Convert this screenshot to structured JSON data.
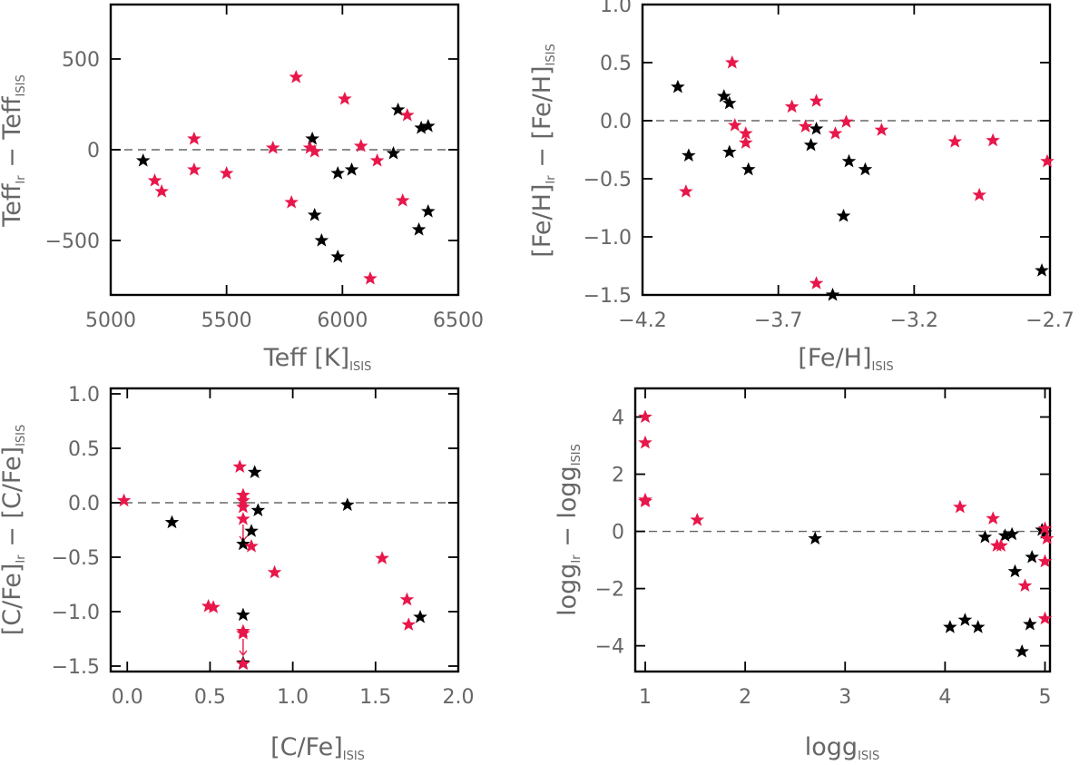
{
  "colors": {
    "set_a": "#000000",
    "set_b": "#e8174a",
    "axis_text": "#666666"
  },
  "chart_data": [
    {
      "type": "scatter",
      "id": "teff",
      "xlabel": "Teff [K]",
      "xlabel_sub": "ISIS",
      "ylabel_main": "Teff",
      "ylabel_sub1": "Ir",
      "ylabel_minus": " − ",
      "ylabel_main2": "Teff",
      "ylabel_sub2": "ISIS",
      "xlim": [
        5000,
        6500
      ],
      "ylim": [
        -800,
        800
      ],
      "xticks": [
        5000,
        5500,
        6000,
        6500
      ],
      "xtick_labels": [
        "5000",
        "5500",
        "6000",
        "6500"
      ],
      "yticks": [
        -500,
        0,
        500
      ],
      "ytick_labels": [
        "−500",
        "0",
        "500"
      ],
      "zero_line": true,
      "series": [
        {
          "name": "set_a",
          "color": "#000000",
          "points": [
            [
              5140,
              -60
            ],
            [
              5870,
              60
            ],
            [
              5880,
              -360
            ],
            [
              5910,
              -500
            ],
            [
              5980,
              -590
            ],
            [
              5980,
              -130
            ],
            [
              6040,
              -110
            ],
            [
              6220,
              -20
            ],
            [
              6240,
              220
            ],
            [
              6330,
              -440
            ],
            [
              6340,
              120
            ],
            [
              6370,
              130
            ],
            [
              6370,
              -340
            ]
          ]
        },
        {
          "name": "set_b",
          "color": "#e8174a",
          "points": [
            [
              5190,
              -170
            ],
            [
              5220,
              -230
            ],
            [
              5360,
              60
            ],
            [
              5360,
              -110
            ],
            [
              5500,
              -130
            ],
            [
              5700,
              10
            ],
            [
              5780,
              -290
            ],
            [
              5800,
              400
            ],
            [
              5860,
              10
            ],
            [
              5880,
              -10
            ],
            [
              6010,
              280
            ],
            [
              6080,
              20
            ],
            [
              6120,
              -710
            ],
            [
              6150,
              -60
            ],
            [
              6260,
              -280
            ],
            [
              6280,
              190
            ]
          ]
        }
      ]
    },
    {
      "type": "scatter",
      "id": "feh",
      "xlabel": "[Fe/H]",
      "xlabel_sub": "ISIS",
      "ylabel_main": "[Fe/H]",
      "ylabel_sub1": "Ir",
      "ylabel_minus": " − ",
      "ylabel_main2": "[Fe/H]",
      "ylabel_sub2": "ISIS",
      "xlim": [
        -4.2,
        -2.7
      ],
      "ylim": [
        -1.5,
        1.0
      ],
      "xticks": [
        -4.2,
        -3.7,
        -3.2,
        -2.7
      ],
      "xtick_labels": [
        "−4.2",
        "−3.7",
        "−3.2",
        "−2.7"
      ],
      "yticks": [
        -1.5,
        -1.0,
        -0.5,
        0.0,
        0.5,
        1.0
      ],
      "ytick_labels": [
        "−1.5",
        "−1.0",
        "−0.5",
        "0.0",
        "0.5",
        "1.0"
      ],
      "zero_line": true,
      "series": [
        {
          "name": "set_a",
          "color": "#000000",
          "points": [
            [
              -4.07,
              0.29
            ],
            [
              -4.03,
              -0.3
            ],
            [
              -3.9,
              0.21
            ],
            [
              -3.88,
              0.15
            ],
            [
              -3.88,
              -0.27
            ],
            [
              -3.81,
              -0.42
            ],
            [
              -3.58,
              -0.21
            ],
            [
              -3.56,
              -0.07
            ],
            [
              -3.5,
              -1.5
            ],
            [
              -3.46,
              -0.82
            ],
            [
              -3.44,
              -0.35
            ],
            [
              -3.38,
              -0.42
            ],
            [
              -2.73,
              -1.29
            ]
          ]
        },
        {
          "name": "set_b",
          "color": "#e8174a",
          "points": [
            [
              -4.04,
              -0.61
            ],
            [
              -3.87,
              0.5
            ],
            [
              -3.86,
              -0.04
            ],
            [
              -3.82,
              -0.11
            ],
            [
              -3.82,
              -0.19
            ],
            [
              -3.65,
              0.12
            ],
            [
              -3.6,
              -0.05
            ],
            [
              -3.56,
              0.17
            ],
            [
              -3.56,
              -1.4
            ],
            [
              -3.49,
              -0.11
            ],
            [
              -3.45,
              -0.01
            ],
            [
              -3.32,
              -0.08
            ],
            [
              -3.05,
              -0.18
            ],
            [
              -2.96,
              -0.64
            ],
            [
              -2.91,
              -0.17
            ],
            [
              -2.71,
              -0.35
            ]
          ]
        }
      ]
    },
    {
      "type": "scatter",
      "id": "cfe",
      "xlabel": "[C/Fe]",
      "xlabel_sub": "ISIS",
      "ylabel_main": "[C/Fe]",
      "ylabel_sub1": "Ir",
      "ylabel_minus": " − ",
      "ylabel_main2": "[C/Fe]",
      "ylabel_sub2": "ISIS",
      "xlim": [
        -0.1,
        2.0
      ],
      "ylim": [
        -1.55,
        1.05
      ],
      "xticks": [
        0.0,
        0.5,
        1.0,
        1.5,
        2.0
      ],
      "xtick_labels": [
        "0.0",
        "0.5",
        "1.0",
        "1.5",
        "2.0"
      ],
      "yticks": [
        -1.5,
        -1.0,
        -0.5,
        0.0,
        0.5,
        1.0
      ],
      "ytick_labels": [
        "−1.5",
        "−1.0",
        "−0.5",
        "0.0",
        "0.5",
        "1.0"
      ],
      "zero_line": true,
      "series": [
        {
          "name": "set_a",
          "color": "#000000",
          "points": [
            [
              0.27,
              -0.18
            ],
            [
              0.7,
              -0.38
            ],
            [
              0.7,
              -1.03
            ],
            [
              0.7,
              -1.47
            ],
            [
              0.75,
              -0.26
            ],
            [
              0.77,
              0.28
            ],
            [
              0.79,
              -0.07
            ],
            [
              1.33,
              -0.02
            ],
            [
              1.77,
              -1.05
            ]
          ]
        },
        {
          "name": "set_b",
          "color": "#e8174a",
          "points": [
            [
              -0.02,
              0.02
            ],
            [
              0.49,
              -0.95
            ],
            [
              0.52,
              -0.96
            ],
            [
              0.68,
              0.33
            ],
            [
              0.7,
              0.07
            ],
            [
              0.7,
              0.02
            ],
            [
              0.7,
              -0.04
            ],
            [
              0.7,
              -0.15
            ],
            [
              0.7,
              -1.18
            ],
            [
              0.7,
              -1.2
            ],
            [
              0.7,
              -1.48
            ],
            [
              0.75,
              -0.4
            ],
            [
              0.89,
              -0.64
            ],
            [
              1.54,
              -0.51
            ],
            [
              1.69,
              -0.89
            ],
            [
              1.7,
              -1.12
            ]
          ]
        }
      ],
      "limit_arrows": [
        [
          0.7,
          -0.15
        ],
        [
          0.7,
          -1.2
        ]
      ]
    },
    {
      "type": "scatter",
      "id": "logg",
      "xlabel": "logg",
      "xlabel_sub": "ISIS",
      "ylabel_main": "logg",
      "ylabel_sub1": "Ir",
      "ylabel_minus": " − ",
      "ylabel_main2": "logg",
      "ylabel_sub2": "ISIS",
      "xlim": [
        0.9,
        5.05
      ],
      "ylim": [
        -4.9,
        5.0
      ],
      "xticks": [
        1,
        2,
        3,
        4,
        5
      ],
      "xtick_labels": [
        "1",
        "2",
        "3",
        "4",
        "5"
      ],
      "yticks": [
        -4,
        -2,
        0,
        2,
        4
      ],
      "ytick_labels": [
        "−4",
        "−2",
        "0",
        "2",
        "4"
      ],
      "zero_line": true,
      "series": [
        {
          "name": "set_a",
          "color": "#000000",
          "points": [
            [
              2.7,
              -0.25
            ],
            [
              4.05,
              -3.35
            ],
            [
              4.2,
              -3.1
            ],
            [
              4.33,
              -3.35
            ],
            [
              4.4,
              -0.2
            ],
            [
              4.6,
              -0.15
            ],
            [
              4.67,
              -0.1
            ],
            [
              4.7,
              -1.4
            ],
            [
              4.77,
              -4.2
            ],
            [
              4.85,
              -3.25
            ],
            [
              4.87,
              -0.9
            ],
            [
              4.97,
              0.05
            ],
            [
              5.0,
              -0.05
            ]
          ]
        },
        {
          "name": "set_b",
          "color": "#e8174a",
          "points": [
            [
              1.0,
              4.0
            ],
            [
              1.0,
              3.1
            ],
            [
              1.0,
              1.1
            ],
            [
              1.0,
              1.05
            ],
            [
              1.52,
              0.4
            ],
            [
              4.15,
              0.85
            ],
            [
              4.48,
              0.45
            ],
            [
              4.52,
              -0.5
            ],
            [
              4.56,
              -0.5
            ],
            [
              4.8,
              -1.9
            ],
            [
              5.0,
              0.1
            ],
            [
              5.02,
              -0.25
            ],
            [
              5.0,
              -1.05
            ],
            [
              5.0,
              -3.05
            ]
          ]
        }
      ]
    }
  ]
}
